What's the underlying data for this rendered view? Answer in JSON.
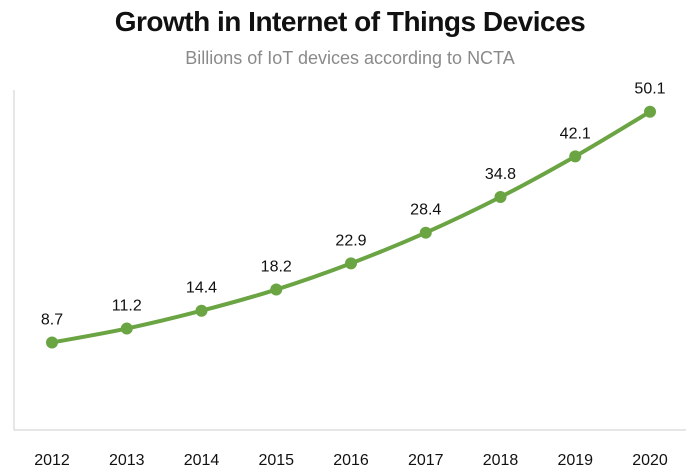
{
  "chart_data": {
    "type": "line",
    "title": "Growth in Internet of Things Devices",
    "subtitle": "Billions of IoT devices according to NCTA",
    "xlabel": "",
    "ylabel": "",
    "categories": [
      "2012",
      "2013",
      "2014",
      "2015",
      "2016",
      "2017",
      "2018",
      "2019",
      "2020"
    ],
    "series": [
      {
        "values": [
          8.7,
          11.2,
          14.4,
          18.2,
          22.9,
          28.4,
          34.8,
          42.1,
          50.1
        ]
      }
    ],
    "data_labels": [
      "8.7",
      "11.2",
      "14.4",
      "18.2",
      "22.9",
      "28.4",
      "34.8",
      "42.1",
      "50.1"
    ],
    "ylim": [
      -7,
      54
    ],
    "grid": false,
    "legend": "none",
    "line_color": "#6aa443",
    "axis_color": "#cccccc"
  }
}
